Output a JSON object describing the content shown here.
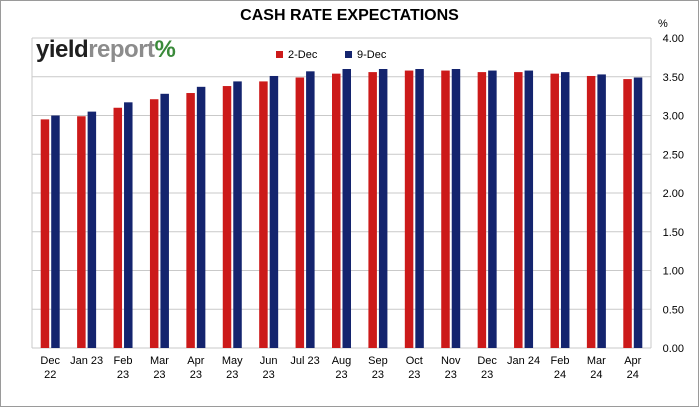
{
  "logo": {
    "part1": "yield",
    "part2": "report",
    "part3": "%"
  },
  "colors": {
    "series1": "#cc1a1a",
    "series2": "#14246e",
    "grid": "#c9c9c9"
  },
  "chart_data": {
    "type": "bar",
    "title": "CASH RATE EXPECTATIONS",
    "ylabel": "%",
    "ylim": [
      0,
      4
    ],
    "yticks": [
      "0.00",
      "0.50",
      "1.00",
      "1.50",
      "2.00",
      "2.50",
      "3.00",
      "3.50",
      "4.00"
    ],
    "y_axis_side": "right",
    "grid": true,
    "legend_position": "top",
    "categories": [
      [
        "Dec",
        "22"
      ],
      [
        "Jan 23"
      ],
      [
        "Feb",
        "23"
      ],
      [
        "Mar",
        "23"
      ],
      [
        "Apr",
        "23"
      ],
      [
        "May",
        "23"
      ],
      [
        "Jun",
        "23"
      ],
      [
        "Jul 23"
      ],
      [
        "Aug",
        "23"
      ],
      [
        "Sep",
        "23"
      ],
      [
        "Oct",
        "23"
      ],
      [
        "Nov",
        "23"
      ],
      [
        "Dec",
        "23"
      ],
      [
        "Jan 24"
      ],
      [
        "Feb",
        "24"
      ],
      [
        "Mar",
        "24"
      ],
      [
        "Apr",
        "24"
      ]
    ],
    "series": [
      {
        "name": "2-Dec",
        "values": [
          2.95,
          2.99,
          3.1,
          3.21,
          3.29,
          3.38,
          3.44,
          3.49,
          3.54,
          3.56,
          3.58,
          3.58,
          3.56,
          3.56,
          3.54,
          3.51,
          3.47
        ]
      },
      {
        "name": "9-Dec",
        "values": [
          3.0,
          3.05,
          3.17,
          3.28,
          3.37,
          3.44,
          3.51,
          3.57,
          3.6,
          3.6,
          3.6,
          3.6,
          3.58,
          3.58,
          3.56,
          3.53,
          3.49
        ]
      }
    ]
  }
}
